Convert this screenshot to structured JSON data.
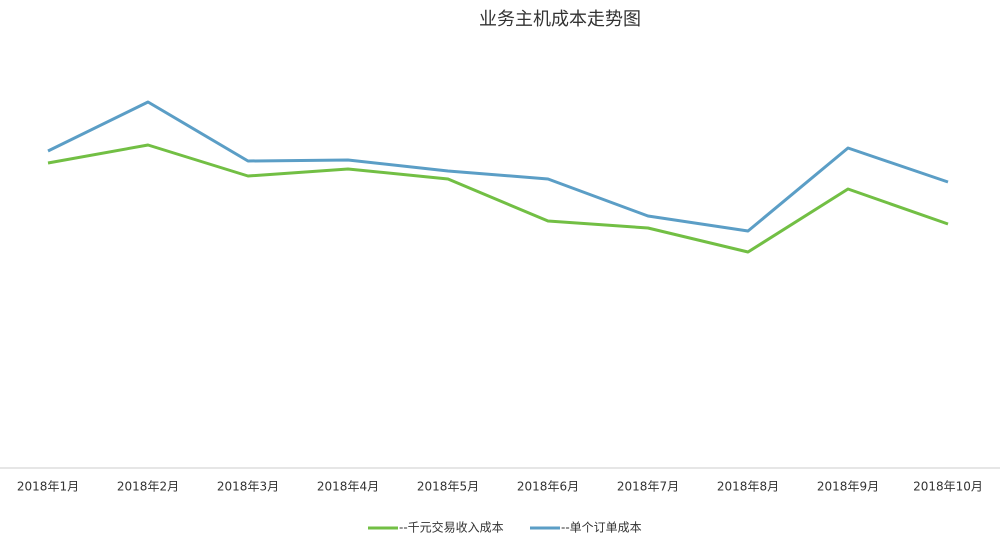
{
  "chart_data": {
    "type": "line",
    "title": "业务主机成本走势图",
    "categories": [
      "2018年1月",
      "2018年2月",
      "2018年3月",
      "2018年4月",
      "2018年5月",
      "2018年6月",
      "2018年7月",
      "2018年8月",
      "2018年9月",
      "2018年10月"
    ],
    "series": [
      {
        "name": "--千元交易收入成本",
        "color": "#72bf44",
        "values": [
          76.25,
          80.75,
          73,
          74.75,
          72.25,
          61.75,
          60,
          54,
          69.75,
          61
        ]
      },
      {
        "name": "--单个订单成本",
        "color": "#5b9ec6",
        "values": [
          79.25,
          91.5,
          76.75,
          77,
          74.25,
          72.25,
          63,
          59.25,
          80,
          71.5
        ]
      }
    ],
    "ylim": [
      0,
      100
    ],
    "grid": false
  }
}
